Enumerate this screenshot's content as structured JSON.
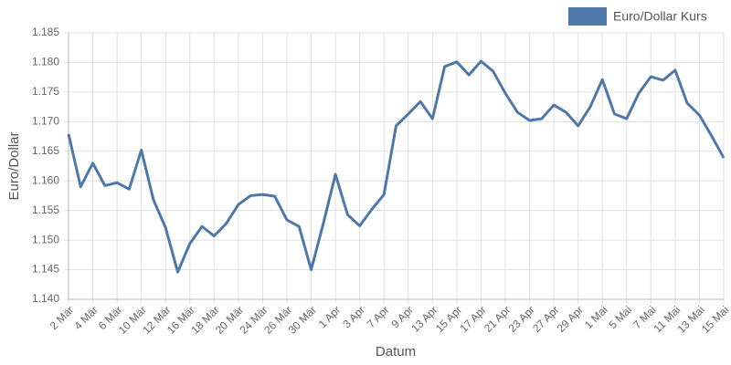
{
  "chart_data": {
    "type": "line",
    "x_label": "Datum",
    "y_label": "Euro/Dollar",
    "categories": [
      "2 Mär",
      null,
      "4 Mär",
      null,
      "6 Mär",
      null,
      "10 Mär",
      null,
      "12 Mär",
      null,
      "16 Mär",
      null,
      "18 Mär",
      null,
      "20 Mär",
      null,
      "24 Mär",
      null,
      "26 Mär",
      null,
      "30 Mär",
      null,
      "1 Apr",
      null,
      "3 Apr",
      null,
      "7 Apr",
      null,
      "9 Apr",
      null,
      "13 Apr",
      null,
      "15 Apr",
      null,
      "17 Apr",
      null,
      "21 Apr",
      null,
      "23 Apr",
      null,
      "27 Apr",
      null,
      "29 Apr",
      null,
      "1 Mai",
      null,
      "5 Mai",
      null,
      "7 Mai",
      null,
      "11 Mai",
      null,
      "13 Mai",
      null,
      "15 Mai"
    ],
    "series": [
      {
        "name": "Euro/Dollar Kurs",
        "color": "#4e78a8",
        "values": [
          1.1679,
          1.159,
          1.163,
          1.1592,
          1.1597,
          1.1586,
          1.1652,
          1.1568,
          1.1521,
          1.1446,
          1.1494,
          1.1523,
          1.1507,
          1.1528,
          1.156,
          1.1575,
          1.1577,
          1.1574,
          1.1534,
          1.1523,
          1.145,
          1.1528,
          1.1611,
          1.1543,
          1.1524,
          1.1552,
          1.1577,
          1.1693,
          1.1713,
          1.1734,
          1.1705,
          1.1793,
          1.1801,
          1.1779,
          1.1802,
          1.1785,
          1.1748,
          1.1716,
          1.1702,
          1.1705,
          1.1728,
          1.1716,
          1.1693,
          1.1725,
          1.1771,
          1.1713,
          1.1705,
          1.1748,
          1.1776,
          1.177,
          1.1787,
          1.1731,
          1.1711,
          1.1676,
          1.1639
        ]
      }
    ],
    "ylim": [
      1.14,
      1.185
    ],
    "yticks": [
      {
        "value": 1.14,
        "label": "1.140"
      },
      1.145,
      {
        "value": 1.15,
        "label": "1.150"
      },
      1.155,
      {
        "value": 1.16,
        "label": "1.160"
      },
      1.165,
      {
        "value": 1.17,
        "label": "1.170"
      },
      1.175,
      {
        "value": 1.18,
        "label": "1.180"
      },
      1.185
    ],
    "grid": true,
    "legend": "top-right"
  }
}
